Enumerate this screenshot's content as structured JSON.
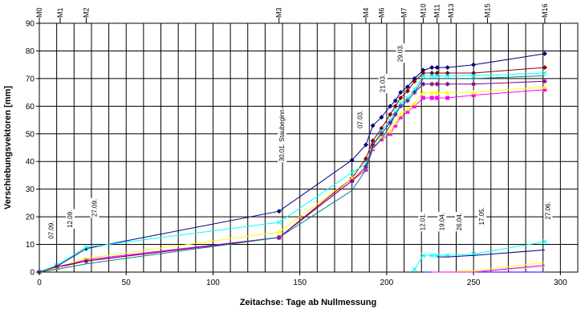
{
  "chart_data": {
    "type": "line",
    "title": "",
    "xlabel": "Zeitachse: Tage ab Nullmessung",
    "ylabel": "Verschiebungsvektoren [mm]",
    "xlim": [
      0,
      310
    ],
    "ylim": [
      0,
      90
    ],
    "x_ticks": [
      0,
      50,
      100,
      150,
      200,
      250,
      300
    ],
    "y_ticks": [
      0,
      10,
      20,
      30,
      40,
      50,
      60,
      70,
      80,
      90
    ],
    "grid": true,
    "legend": "none",
    "x_minor_grid_step": 10,
    "milestones": [
      {
        "label": "M0",
        "x": 0
      },
      {
        "label": "M1",
        "x": 12
      },
      {
        "label": "M2",
        "x": 27
      },
      {
        "label": "M3",
        "x": 138
      },
      {
        "label": "M4",
        "x": 188
      },
      {
        "label": "M6",
        "x": 197
      },
      {
        "label": "M7",
        "x": 210
      },
      {
        "label": "M10",
        "x": 221
      },
      {
        "label": "M11",
        "x": 229
      },
      {
        "label": "M13",
        "x": 237
      },
      {
        "label": "M15",
        "x": 258
      },
      {
        "label": "M16",
        "x": 291
      }
    ],
    "annotations": [
      {
        "text": "07.09.",
        "x": 8,
        "y": 12
      },
      {
        "text": "12.09.",
        "x": 19,
        "y": 16
      },
      {
        "text": "27.09.",
        "x": 33,
        "y": 20
      },
      {
        "text": "30.01. Staubeginn",
        "x": 141,
        "y": 40
      },
      {
        "text": "07.03.",
        "x": 186,
        "y": 52
      },
      {
        "text": "21.03.",
        "x": 199,
        "y": 65
      },
      {
        "text": "29.03.",
        "x": 209,
        "y": 76
      },
      {
        "text": "12.01.",
        "x": 222,
        "y": 15
      },
      {
        "text": "19.04.",
        "x": 233,
        "y": 15
      },
      {
        "text": "26.04.",
        "x": 243,
        "y": 15
      },
      {
        "text": "17.05.",
        "x": 256,
        "y": 17
      },
      {
        "text": "27.06.",
        "x": 294,
        "y": 19
      }
    ],
    "series": [
      {
        "color": "#00007f",
        "marker": "diamond",
        "x": [
          0,
          10,
          27,
          138,
          180,
          188,
          192,
          197,
          202,
          205,
          208,
          212,
          216,
          221,
          226,
          229,
          235,
          250,
          291
        ],
        "y": [
          0,
          2,
          8.5,
          22,
          40.5,
          46,
          53,
          56,
          60,
          62,
          65,
          67,
          70,
          73,
          74,
          74,
          74,
          75,
          79
        ]
      },
      {
        "color": "#8b0000",
        "marker": "diamond",
        "x": [
          0,
          10,
          27,
          138,
          180,
          188,
          192,
          197,
          202,
          205,
          208,
          212,
          216,
          221,
          226,
          229,
          235,
          250,
          291
        ],
        "y": [
          0,
          1.5,
          4,
          12.5,
          34,
          41,
          47.5,
          52,
          57,
          60,
          63,
          65.5,
          69,
          72,
          72,
          72,
          72,
          72,
          74
        ]
      },
      {
        "color": "#ff00ff",
        "marker": "square",
        "x": [
          0,
          10,
          27,
          138,
          180,
          188,
          192,
          197,
          202,
          205,
          208,
          212,
          216,
          221,
          226,
          229,
          235,
          250,
          291
        ],
        "y": [
          0,
          1.5,
          4.5,
          12.5,
          33,
          37,
          44.5,
          48,
          50,
          53,
          56,
          58,
          60,
          63,
          63,
          63,
          63,
          64,
          66
        ]
      },
      {
        "color": "#ffff00",
        "marker": "triangle",
        "x": [
          0,
          10,
          27,
          138,
          180,
          188,
          192,
          197,
          202,
          205,
          208,
          212,
          216,
          221,
          226,
          229,
          235,
          250,
          291
        ],
        "y": [
          0,
          1.5,
          5,
          14.5,
          34,
          38,
          45,
          49,
          51,
          54,
          57,
          59,
          61,
          65,
          65,
          65,
          65,
          65,
          67
        ]
      },
      {
        "color": "#00ffff",
        "marker": "x",
        "x": [
          0,
          10,
          27,
          138,
          180,
          188,
          192,
          197,
          202,
          205,
          208,
          212,
          216,
          221,
          226,
          229,
          235,
          250,
          291
        ],
        "y": [
          0,
          2.5,
          9,
          18,
          36,
          39,
          46,
          51,
          55,
          58,
          61,
          63,
          66,
          71,
          71,
          71,
          71,
          71,
          72
        ]
      },
      {
        "color": "#800080",
        "marker": "star",
        "x": [
          0,
          10,
          27,
          138,
          180,
          188,
          192,
          197,
          202,
          205,
          208,
          212,
          216,
          221,
          226,
          229,
          235,
          250,
          291
        ],
        "y": [
          0,
          2,
          4,
          12.5,
          33,
          38,
          46,
          50,
          54,
          57,
          60,
          62,
          65,
          68,
          68,
          68,
          68,
          68,
          69
        ]
      },
      {
        "color": "#008080",
        "marker": "none",
        "x": [
          0,
          10,
          27,
          138,
          180,
          188,
          192,
          197,
          202,
          205,
          208,
          212,
          216,
          221,
          226,
          229,
          235,
          250,
          291
        ],
        "y": [
          0,
          1,
          3,
          12.5,
          29.5,
          37,
          45,
          48,
          53,
          57,
          60,
          62,
          65,
          70,
          70,
          70,
          70,
          70,
          71
        ]
      },
      {
        "color": "#00ffff",
        "marker": "x",
        "x": [
          216,
          221,
          226,
          229,
          235,
          250,
          291
        ],
        "y": [
          1,
          6,
          6,
          6,
          6,
          6.5,
          11
        ]
      },
      {
        "color": "#0000ff",
        "marker": "none",
        "x": [
          221,
          226,
          229,
          235,
          250,
          291
        ],
        "y": [
          0,
          0,
          0,
          0,
          0,
          0
        ]
      },
      {
        "color": "#00007f",
        "marker": "none",
        "x": [
          229,
          235,
          250,
          291
        ],
        "y": [
          5.5,
          5.5,
          6,
          8
        ]
      },
      {
        "color": "#ffff00",
        "marker": "none",
        "x": [
          226,
          229,
          235,
          250,
          291
        ],
        "y": [
          0,
          0,
          0,
          0.5,
          3.5
        ]
      },
      {
        "color": "#c0c0c0",
        "marker": "none",
        "x": [
          226,
          229,
          235,
          250,
          291
        ],
        "y": [
          0,
          0,
          0,
          0,
          2
        ]
      },
      {
        "color": "#ff00ff",
        "marker": "none",
        "x": [
          226,
          229,
          235,
          250,
          291
        ],
        "y": [
          0,
          0,
          0,
          0,
          2.5
        ]
      }
    ]
  }
}
